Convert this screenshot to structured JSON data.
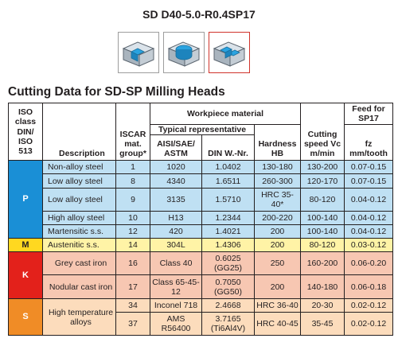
{
  "product_code": "SD D40-5.0-R0.4SP17",
  "icons": [
    "insert-cutter-icon",
    "insert-cutter-round-icon",
    "insert-cutter-selected-icon"
  ],
  "section_title": "Cutting Data for SD-SP Milling Heads",
  "headers": {
    "iso": "ISO class DIN/ ISO 513",
    "description": "Description",
    "iscar": "ISCAR mat. group*",
    "workpiece": "Workpiece material",
    "typical": "Typical representative",
    "aisi": "AISI/SAE/ ASTM",
    "din": "DIN W.-Nr.",
    "hardness": "Hardness HB",
    "speed": "Cutting speed Vc m/min",
    "feed_title": "Feed for SP17",
    "feed": "fz mm/tooth"
  },
  "groups": [
    {
      "code": "P",
      "color": "#1a8fd6",
      "rows": [
        {
          "description": "Non-alloy steel",
          "group": "1",
          "aisi": "1020",
          "din": "1.0402",
          "hardness": "130-180",
          "speed": "130-200",
          "feed": "0.07-0.15"
        },
        {
          "description": "Low alloy steel",
          "group": "8",
          "aisi": "4340",
          "din": "1.6511",
          "hardness": "260-300",
          "speed": "120-170",
          "feed": "0.07-0.15"
        },
        {
          "description": "Low alloy steel",
          "group": "9",
          "aisi": "3135",
          "din": "1.5710",
          "hardness": "HRC 35-40*",
          "speed": "80-120",
          "feed": "0.04-0.12"
        },
        {
          "description": "High alloy steel",
          "group": "10",
          "aisi": "H13",
          "din": "1.2344",
          "hardness": "200-220",
          "speed": "100-140",
          "feed": "0.04-0.12"
        },
        {
          "description": "Martensitic s.s.",
          "group": "12",
          "aisi": "420",
          "din": "1.4021",
          "hardness": "200",
          "speed": "100-140",
          "feed": "0.04-0.12"
        }
      ]
    },
    {
      "code": "M",
      "color": "#ffd820",
      "rows": [
        {
          "description": "Austenitic s.s.",
          "group": "14",
          "aisi": "304L",
          "din": "1.4306",
          "hardness": "200",
          "speed": "80-120",
          "feed": "0.03-0.12"
        }
      ]
    },
    {
      "code": "K",
      "color": "#e3211b",
      "rows": [
        {
          "description": "Grey cast iron",
          "group": "16",
          "aisi": "Class 40",
          "din": "0.6025 (GG25)",
          "hardness": "250",
          "speed": "160-200",
          "feed": "0.06-0.20"
        },
        {
          "description": "Nodular cast iron",
          "group": "17",
          "aisi": "Class 65-45-12",
          "din": "0.7050 (GG50)",
          "hardness": "200",
          "speed": "140-180",
          "feed": "0.06-0.18"
        }
      ]
    },
    {
      "code": "S",
      "color": "#f08c26",
      "description": "High temperature alloys",
      "rows": [
        {
          "group": "34",
          "aisi": "Inconel 718",
          "din": "2.4668",
          "hardness": "HRC 36-40",
          "speed": "20-30",
          "feed": "0.02-0.12"
        },
        {
          "group": "37",
          "aisi": "AMS R56400",
          "din": "3.7165 (Ti6Al4V)",
          "hardness": "HRC 40-45",
          "speed": "35-45",
          "feed": "0.02-0.12"
        }
      ]
    }
  ]
}
